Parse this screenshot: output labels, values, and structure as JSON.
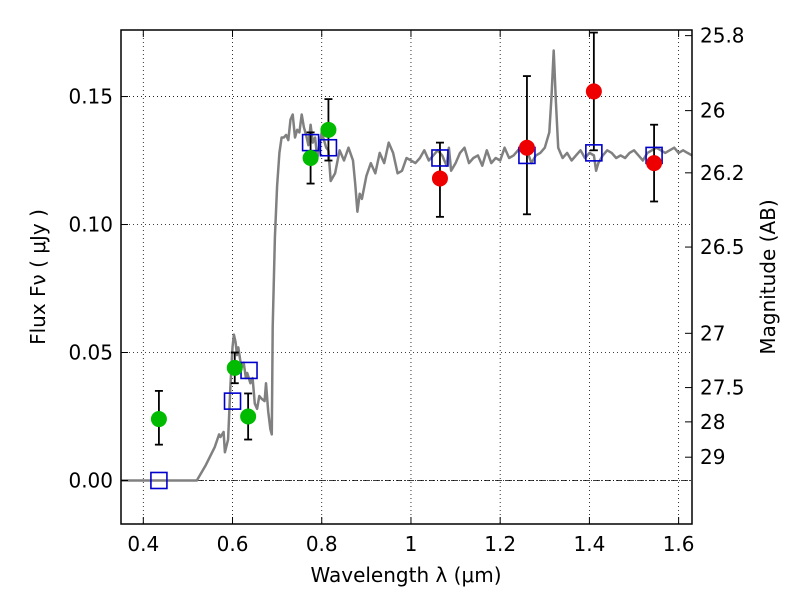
{
  "chart_data": {
    "type": "scatter",
    "xlabel": "Wavelength  λ (μm)",
    "ylabel": "Flux  Fν ( μJy )",
    "ylabel_right": "Magnitude (AB)",
    "xlim": [
      0.35,
      1.63
    ],
    "ylim": [
      -0.017,
      0.176
    ],
    "x_ticks": [
      {
        "value": 0.4,
        "label": "0.4"
      },
      {
        "value": 0.6,
        "label": "0.6"
      },
      {
        "value": 0.8,
        "label": "0.8"
      },
      {
        "value": 1.0,
        "label": "1"
      },
      {
        "value": 1.2,
        "label": "1.2"
      },
      {
        "value": 1.4,
        "label": "1.4"
      },
      {
        "value": 1.6,
        "label": "1.6"
      }
    ],
    "y_ticks": [
      {
        "value": 0.0,
        "label": "0.00"
      },
      {
        "value": 0.05,
        "label": "0.05"
      },
      {
        "value": 0.1,
        "label": "0.10"
      },
      {
        "value": 0.15,
        "label": "0.15"
      }
    ],
    "right_ticks": [
      {
        "label": "25.8",
        "flux": 0.1738
      },
      {
        "label": "26",
        "flux": 0.1445
      },
      {
        "label": "26.2",
        "flux": 0.1202
      },
      {
        "label": "26.5",
        "flux": 0.0912
      },
      {
        "label": "27",
        "flux": 0.0575
      },
      {
        "label": "27.5",
        "flux": 0.0363
      },
      {
        "label": "28",
        "flux": 0.0229
      },
      {
        "label": "29",
        "flux": 0.0091
      }
    ],
    "grid": true,
    "zero_line": true,
    "series": [
      {
        "kind": "line",
        "color": "#808080",
        "points": [
          [
            0.35,
            0.0
          ],
          [
            0.52,
            0.0
          ],
          [
            0.54,
            0.006
          ],
          [
            0.56,
            0.013
          ],
          [
            0.57,
            0.018
          ],
          [
            0.573,
            0.017
          ],
          [
            0.58,
            0.019
          ],
          [
            0.583,
            0.011
          ],
          [
            0.59,
            0.016
          ],
          [
            0.595,
            0.036
          ],
          [
            0.6,
            0.052
          ],
          [
            0.603,
            0.057
          ],
          [
            0.607,
            0.054
          ],
          [
            0.61,
            0.049
          ],
          [
            0.613,
            0.052
          ],
          [
            0.62,
            0.044
          ],
          [
            0.625,
            0.046
          ],
          [
            0.63,
            0.04
          ],
          [
            0.633,
            0.042
          ],
          [
            0.64,
            0.038
          ],
          [
            0.645,
            0.04
          ],
          [
            0.65,
            0.03
          ],
          [
            0.655,
            0.028
          ],
          [
            0.66,
            0.033
          ],
          [
            0.665,
            0.032
          ],
          [
            0.672,
            0.031
          ],
          [
            0.675,
            0.038
          ],
          [
            0.68,
            0.027
          ],
          [
            0.685,
            0.02
          ],
          [
            0.688,
            0.018
          ],
          [
            0.69,
            0.06
          ],
          [
            0.695,
            0.095
          ],
          [
            0.7,
            0.115
          ],
          [
            0.705,
            0.128
          ],
          [
            0.71,
            0.134
          ],
          [
            0.715,
            0.134
          ],
          [
            0.72,
            0.135
          ],
          [
            0.725,
            0.133
          ],
          [
            0.73,
            0.141
          ],
          [
            0.735,
            0.143
          ],
          [
            0.74,
            0.134
          ],
          [
            0.745,
            0.137
          ],
          [
            0.75,
            0.136
          ],
          [
            0.755,
            0.143
          ],
          [
            0.76,
            0.138
          ],
          [
            0.765,
            0.135
          ],
          [
            0.77,
            0.131
          ],
          [
            0.775,
            0.139
          ],
          [
            0.78,
            0.132
          ],
          [
            0.785,
            0.134
          ],
          [
            0.79,
            0.126
          ],
          [
            0.8,
            0.136
          ],
          [
            0.81,
            0.13
          ],
          [
            0.815,
            0.129
          ],
          [
            0.82,
            0.117
          ],
          [
            0.83,
            0.12
          ],
          [
            0.84,
            0.129
          ],
          [
            0.85,
            0.125
          ],
          [
            0.86,
            0.13
          ],
          [
            0.87,
            0.125
          ],
          [
            0.875,
            0.116
          ],
          [
            0.88,
            0.105
          ],
          [
            0.885,
            0.112
          ],
          [
            0.89,
            0.11
          ],
          [
            0.9,
            0.119
          ],
          [
            0.91,
            0.124
          ],
          [
            0.92,
            0.12
          ],
          [
            0.93,
            0.128
          ],
          [
            0.94,
            0.124
          ],
          [
            0.95,
            0.132
          ],
          [
            0.955,
            0.13
          ],
          [
            0.96,
            0.128
          ],
          [
            0.97,
            0.12
          ],
          [
            0.98,
            0.121
          ],
          [
            0.99,
            0.126
          ],
          [
            1.0,
            0.125
          ],
          [
            1.01,
            0.124
          ],
          [
            1.02,
            0.126
          ],
          [
            1.03,
            0.129
          ],
          [
            1.04,
            0.125
          ],
          [
            1.05,
            0.127
          ],
          [
            1.06,
            0.129
          ],
          [
            1.07,
            0.127
          ],
          [
            1.08,
            0.123
          ],
          [
            1.085,
            0.13
          ],
          [
            1.09,
            0.121
          ],
          [
            1.1,
            0.124
          ],
          [
            1.11,
            0.128
          ],
          [
            1.12,
            0.13
          ],
          [
            1.13,
            0.124
          ],
          [
            1.14,
            0.126
          ],
          [
            1.15,
            0.127
          ],
          [
            1.16,
            0.123
          ],
          [
            1.17,
            0.129
          ],
          [
            1.18,
            0.124
          ],
          [
            1.19,
            0.126
          ],
          [
            1.2,
            0.125
          ],
          [
            1.21,
            0.13
          ],
          [
            1.22,
            0.126
          ],
          [
            1.23,
            0.127
          ],
          [
            1.24,
            0.129
          ],
          [
            1.25,
            0.131
          ],
          [
            1.26,
            0.129
          ],
          [
            1.27,
            0.124
          ],
          [
            1.28,
            0.127
          ],
          [
            1.29,
            0.128
          ],
          [
            1.3,
            0.13
          ],
          [
            1.31,
            0.136
          ],
          [
            1.315,
            0.15
          ],
          [
            1.32,
            0.168
          ],
          [
            1.325,
            0.148
          ],
          [
            1.33,
            0.13
          ],
          [
            1.34,
            0.126
          ],
          [
            1.35,
            0.128
          ],
          [
            1.36,
            0.125
          ],
          [
            1.37,
            0.127
          ],
          [
            1.38,
            0.129
          ],
          [
            1.39,
            0.126
          ],
          [
            1.4,
            0.128
          ],
          [
            1.41,
            0.127
          ],
          [
            1.415,
            0.121
          ],
          [
            1.42,
            0.124
          ],
          [
            1.43,
            0.127
          ],
          [
            1.44,
            0.129
          ],
          [
            1.45,
            0.128
          ],
          [
            1.46,
            0.126
          ],
          [
            1.47,
            0.127
          ],
          [
            1.48,
            0.126
          ],
          [
            1.49,
            0.128
          ],
          [
            1.5,
            0.129
          ],
          [
            1.51,
            0.127
          ],
          [
            1.52,
            0.125
          ],
          [
            1.53,
            0.128
          ],
          [
            1.54,
            0.129
          ],
          [
            1.55,
            0.13
          ],
          [
            1.56,
            0.129
          ],
          [
            1.57,
            0.128
          ],
          [
            1.58,
            0.129
          ],
          [
            1.59,
            0.13
          ],
          [
            1.6,
            0.128
          ],
          [
            1.61,
            0.129
          ],
          [
            1.62,
            0.128
          ],
          [
            1.63,
            0.127
          ]
        ]
      },
      {
        "kind": "squares",
        "color": "#0000cc",
        "points": [
          [
            0.435,
            0.0
          ],
          [
            0.6,
            0.031
          ],
          [
            0.637,
            0.043
          ],
          [
            0.775,
            0.132
          ],
          [
            0.815,
            0.13
          ],
          [
            1.065,
            0.126
          ],
          [
            1.26,
            0.127
          ],
          [
            1.41,
            0.128
          ],
          [
            1.545,
            0.127
          ]
        ]
      },
      {
        "kind": "circles",
        "color": "#00bb00",
        "points": [
          {
            "x": 0.435,
            "y": 0.024,
            "lo": 0.014,
            "hi": 0.035
          },
          {
            "x": 0.605,
            "y": 0.044,
            "lo": 0.038,
            "hi": 0.05
          },
          {
            "x": 0.635,
            "y": 0.025,
            "lo": 0.016,
            "hi": 0.034
          },
          {
            "x": 0.775,
            "y": 0.126,
            "lo": 0.116,
            "hi": 0.136
          },
          {
            "x": 0.815,
            "y": 0.137,
            "lo": 0.125,
            "hi": 0.149
          }
        ]
      },
      {
        "kind": "circles",
        "color": "#ee0000",
        "points": [
          {
            "x": 1.065,
            "y": 0.118,
            "lo": 0.103,
            "hi": 0.132
          },
          {
            "x": 1.26,
            "y": 0.13,
            "lo": 0.104,
            "hi": 0.158
          },
          {
            "x": 1.41,
            "y": 0.152,
            "lo": 0.129,
            "hi": 0.175
          },
          {
            "x": 1.545,
            "y": 0.124,
            "lo": 0.109,
            "hi": 0.139
          }
        ]
      }
    ]
  }
}
